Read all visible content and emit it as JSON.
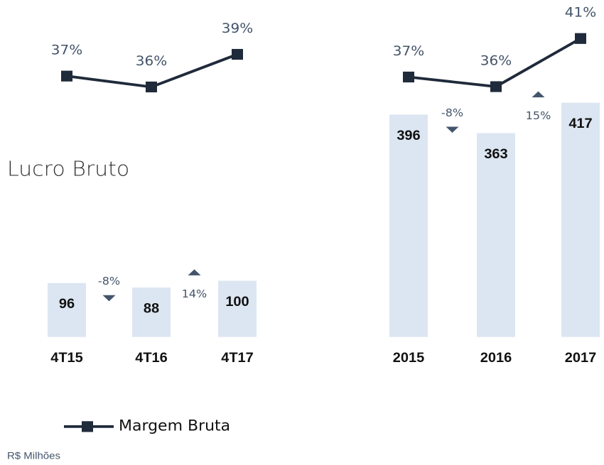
{
  "title": "Lucro Bruto",
  "note": "R$ Milhões",
  "chart_data": [
    {
      "type": "bar-line",
      "categories": [
        "4T15",
        "4T16",
        "4T17"
      ],
      "values": [
        96,
        88,
        100
      ],
      "color": "#dce6f2",
      "ylim": [
        0,
        600
      ],
      "series": [
        {
          "name": "Margem Bruta",
          "color": "#1f2a3a",
          "axis": "y2",
          "values": [
            37,
            36,
            39
          ],
          "value_labels": [
            "37%",
            "36%",
            "39%"
          ]
        }
      ],
      "y2lim": [
        13,
        44
      ],
      "annotations": [
        {
          "label": "-8%",
          "direction": "down"
        },
        {
          "label": "14%",
          "direction": "up"
        }
      ]
    },
    {
      "type": "bar-line",
      "categories": [
        "2015",
        "2016",
        "2017"
      ],
      "values": [
        396,
        363,
        417
      ],
      "color": "#dce6f2",
      "ylim": [
        0,
        600
      ],
      "series": [
        {
          "name": "Margem Bruta",
          "color": "#1f2a3a",
          "axis": "y2",
          "values": [
            37,
            36,
            41
          ],
          "value_labels": [
            "37%",
            "36%",
            "41%"
          ]
        }
      ],
      "y2lim": [
        10,
        45
      ],
      "annotations": [
        {
          "label": "-8%",
          "direction": "down"
        },
        {
          "label": "15%",
          "direction": "up"
        }
      ]
    }
  ]
}
